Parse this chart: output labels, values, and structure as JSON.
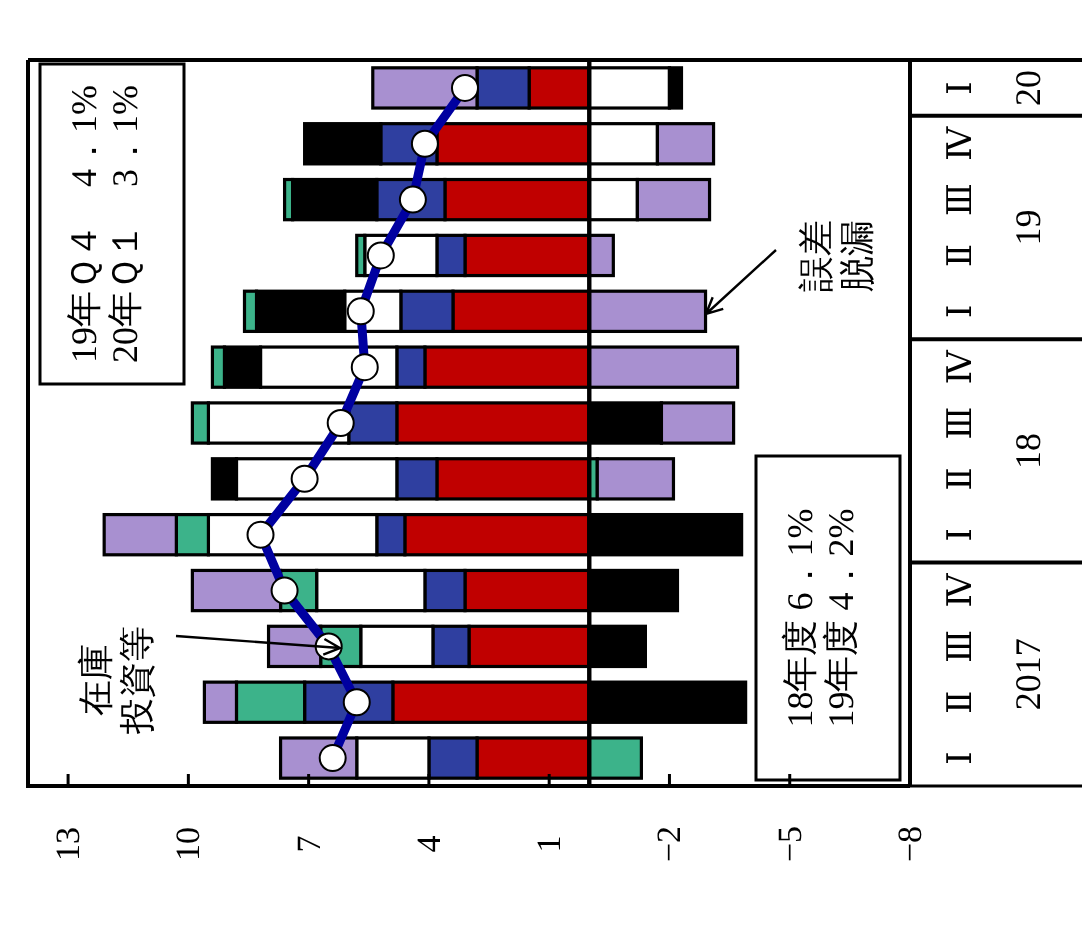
{
  "chart_data": {
    "type": "bar",
    "orientation": "horizontal",
    "stacked": true,
    "marker": "circle",
    "categories": [
      "Ⅰ",
      "Ⅳ",
      "Ⅲ",
      "Ⅱ",
      "Ⅰ",
      "Ⅳ",
      "Ⅲ",
      "Ⅱ",
      "Ⅰ",
      "Ⅳ",
      "Ⅲ",
      "Ⅱ",
      "Ⅰ"
    ],
    "xlim": [
      14,
      -8
    ],
    "xticks": [
      13,
      10,
      7,
      4,
      1,
      -2,
      -5,
      -8
    ],
    "series": [
      {
        "color": "#c00000",
        "values": [
          1.5,
          3.8,
          3.6,
          3.1,
          3.4,
          4.1,
          4.8,
          3.8,
          4.6,
          3.1,
          3.0,
          4.9,
          2.8
        ]
      },
      {
        "color": "#2f3fa0",
        "values": [
          1.3,
          1.4,
          1.7,
          0.7,
          1.3,
          0.7,
          1.2,
          1.0,
          0.7,
          1.0,
          0.9,
          2.2,
          1.2
        ]
      },
      {
        "color": "#ffffff",
        "values": [
          -2.0,
          -1.7,
          -1.2,
          1.8,
          1.4,
          3.4,
          3.5,
          4.0,
          4.2,
          2.7,
          1.8,
          null,
          1.8
        ]
      },
      {
        "color": "#000000",
        "values": [
          -0.3,
          1.9,
          2.1,
          null,
          2.2,
          0.9,
          -1.8,
          0.6,
          -3.8,
          -2.2,
          -1.4,
          -3.9,
          null
        ]
      },
      {
        "name": "在庫投資等",
        "color": "#3cb38a",
        "values": [
          null,
          null,
          0.2,
          0.2,
          0.3,
          0.3,
          0.4,
          -0.2,
          0.8,
          0.9,
          1.0,
          1.7,
          -1.3
        ]
      },
      {
        "name": "誤差脱漏",
        "color": "#a890d0",
        "values": [
          2.6,
          -1.4,
          -1.8,
          -0.6,
          -2.9,
          -3.7,
          -1.8,
          -1.9,
          1.8,
          2.2,
          1.3,
          0.8,
          1.9
        ]
      },
      {
        "type": "line",
        "color": "#0000a0",
        "values": [
          3.1,
          4.1,
          4.4,
          5.2,
          5.7,
          5.6,
          6.2,
          7.1,
          8.2,
          7.6,
          6.5,
          5.8,
          6.4
        ]
      }
    ],
    "annotations": [
      "19年Ｑ４　4．1%\n20年Ｑ１　3．1%",
      "18年度 6．1%\n19年度 4．2%",
      "20",
      "19",
      "18",
      "2017"
    ]
  }
}
